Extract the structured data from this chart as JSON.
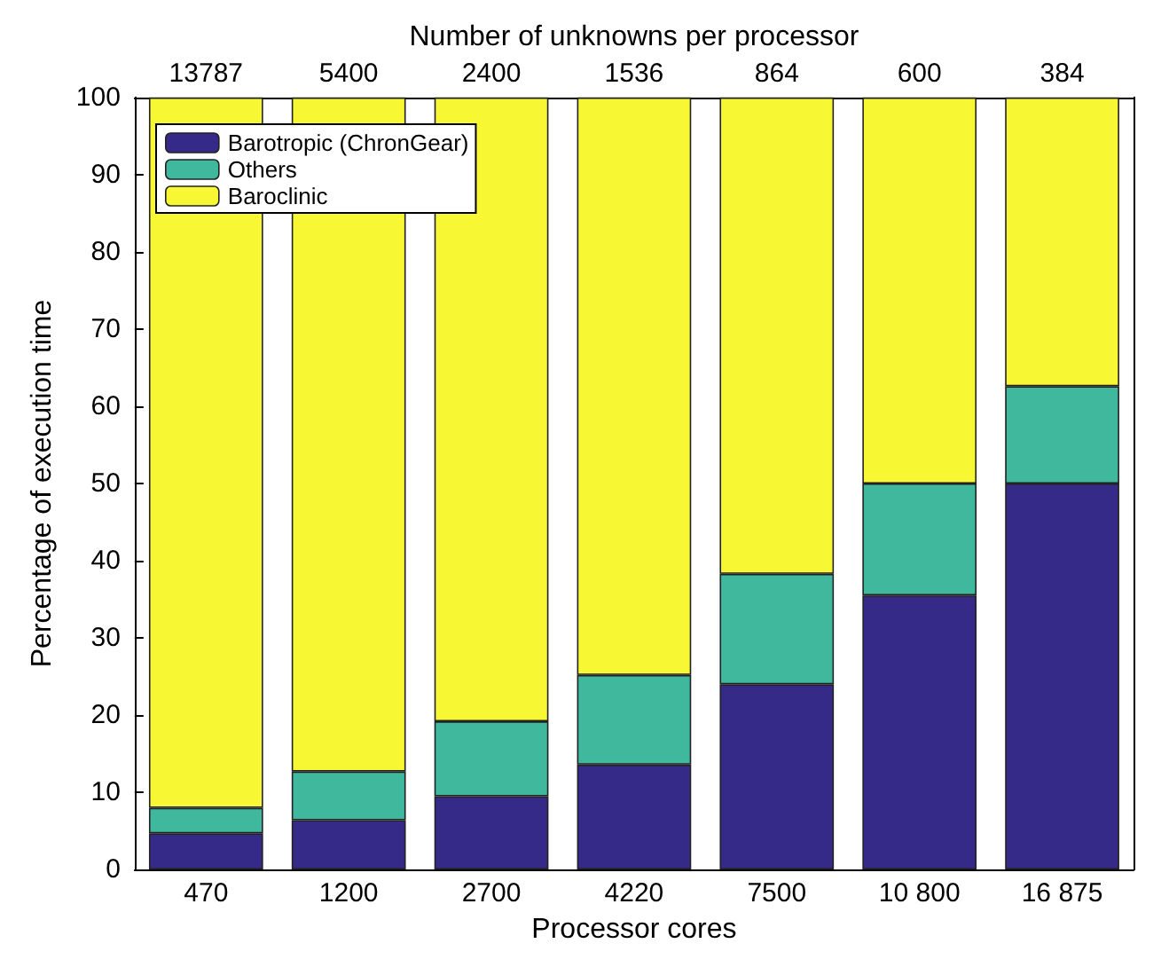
{
  "chart_data": {
    "type": "bar",
    "stacked": true,
    "xlabel": "Processor cores",
    "ylabel": "Percentage of execution time",
    "x2label": "Number of unknowns per processor",
    "categories": [
      "470",
      "1200",
      "2700",
      "4220",
      "7500",
      "10 800",
      "16 875"
    ],
    "annotations": [
      "13787",
      "5400",
      "2400",
      "1536",
      "864",
      "600",
      "384"
    ],
    "series": [
      {
        "name": "Barotropic (ChronGear)",
        "color": "#352a87",
        "values": [
          4.7,
          6.4,
          9.5,
          13.6,
          24.0,
          35.5,
          50.0
        ]
      },
      {
        "name": "Others",
        "color": "#3fb89d",
        "values": [
          3.3,
          6.3,
          9.7,
          11.6,
          14.3,
          14.5,
          12.6
        ]
      },
      {
        "name": "Baroclinic",
        "color": "#f8f734",
        "values": [
          92.0,
          87.3,
          80.8,
          74.8,
          61.7,
          50.0,
          37.4
        ]
      }
    ],
    "ylim": [
      0,
      100
    ],
    "yticks": [
      0,
      10,
      20,
      30,
      40,
      50,
      60,
      70,
      80,
      90,
      100
    ],
    "grid": false,
    "legend": "top left"
  }
}
